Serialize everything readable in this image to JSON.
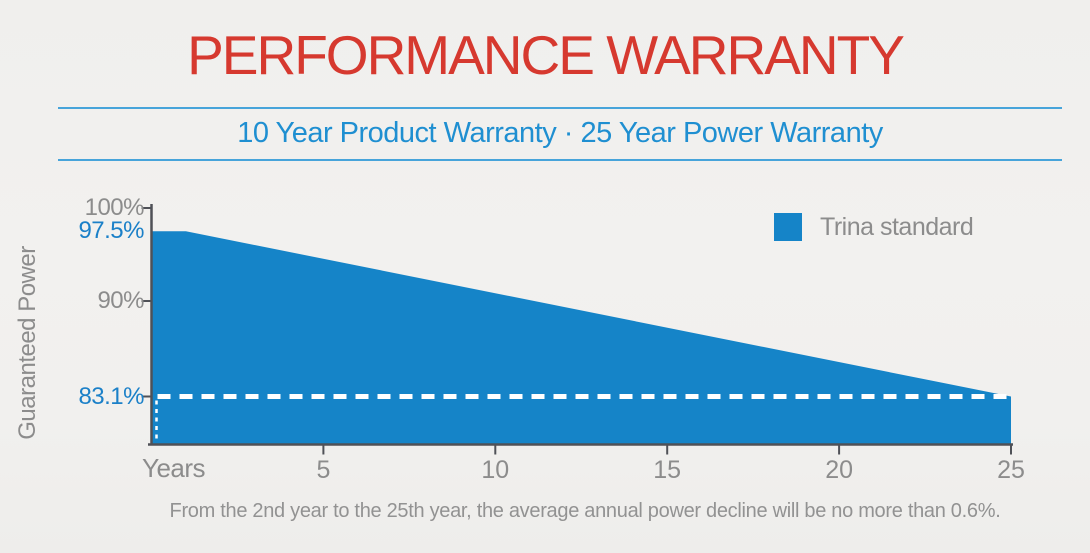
{
  "header": {
    "title": "PERFORMANCE WARRANTY",
    "subtitle": "10 Year Product Warranty · 25 Year Power Warranty"
  },
  "chart_data": {
    "type": "area",
    "title": "",
    "xlabel": "Years",
    "ylabel": "Guaranteed Power",
    "x_range": [
      0,
      25
    ],
    "ylim_approx": [
      79.7,
      100
    ],
    "grid": false,
    "legend_position": "top-right",
    "series": [
      {
        "name": "Trina standard",
        "color": "#1584c8",
        "points": [
          [
            0,
            97.5
          ],
          [
            1,
            97.5
          ],
          [
            25,
            83.1
          ]
        ]
      }
    ],
    "y_ticks": [
      {
        "value": 100,
        "label": "100%",
        "highlight": false,
        "tick_mark": true
      },
      {
        "value": 97.5,
        "label": "97.5%",
        "highlight": true,
        "tick_mark": false
      },
      {
        "value": 90,
        "label": "90%",
        "highlight": false,
        "tick_mark": true
      },
      {
        "value": 83.1,
        "label": "83.1%",
        "highlight": true,
        "tick_mark": true
      }
    ],
    "x_ticks": [
      {
        "value": 5,
        "label": "5"
      },
      {
        "value": 10,
        "label": "10"
      },
      {
        "value": 15,
        "label": "15"
      },
      {
        "value": 20,
        "label": "20"
      },
      {
        "value": 25,
        "label": "25"
      }
    ],
    "guide_line": {
      "value": 83.1,
      "style": "dashed",
      "color": "#ffffff"
    },
    "legend": [
      {
        "label": "Trina standard",
        "color": "#1584c8"
      }
    ],
    "footnote": "From the 2nd year to the 25th year, the average annual power decline will be no more than 0.6%."
  },
  "colors": {
    "title_red": "#d6392f",
    "subtitle_blue": "#1f8fd1",
    "divider_blue": "#47a4da",
    "area_blue": "#1584c8",
    "y_label_blue": "#1b80c8",
    "text_gray": "#8c8c8c",
    "axis_dark": "#4f5157",
    "footnote_gray": "#929292",
    "guide_white": "#ffffff",
    "background": "#f1f0ee"
  }
}
